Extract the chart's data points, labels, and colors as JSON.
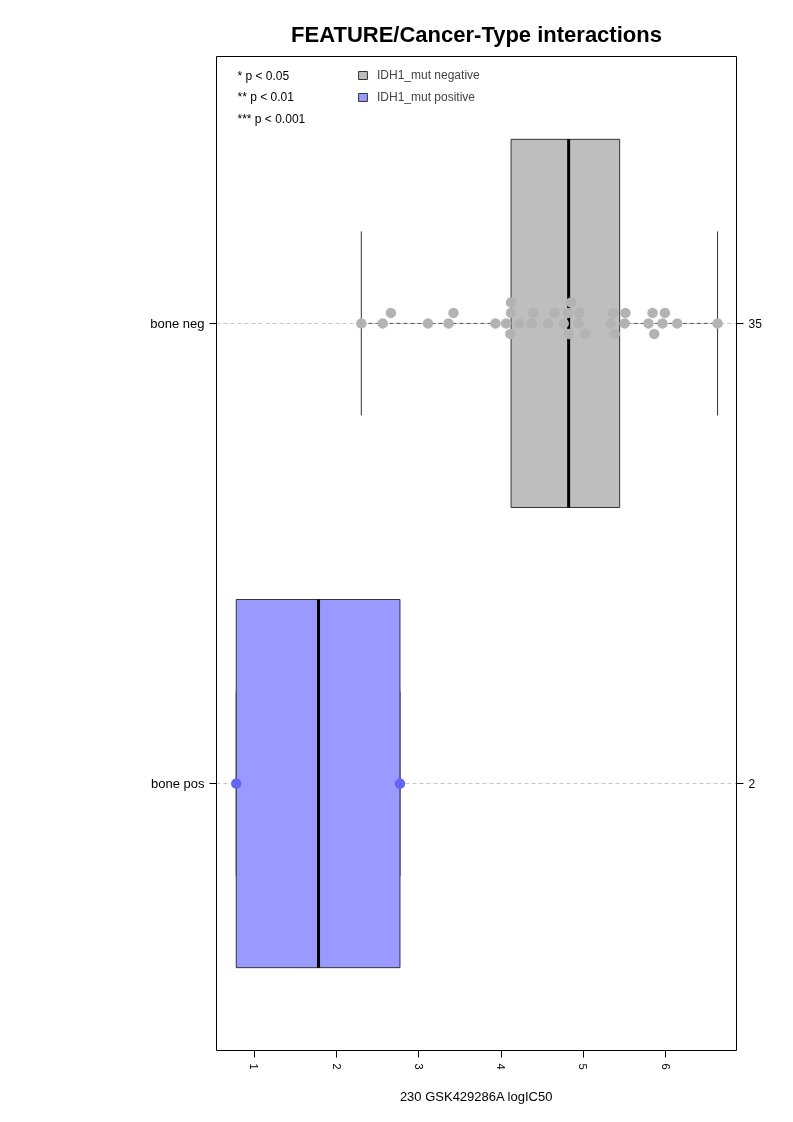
{
  "chart_data": {
    "type": "box",
    "title": "FEATURE/Cancer-Type interactions",
    "xlabel": "230 GSK429286A logIC50",
    "orientation": "horizontal",
    "categories": [
      "bone neg",
      "bone pos"
    ],
    "y2_categories": [
      "35",
      "2"
    ],
    "xlim": [
      0.54,
      6.86
    ],
    "xticks": [
      1,
      2,
      3,
      4,
      5,
      6
    ],
    "grid": "y",
    "legend": "top left",
    "annotations": [
      "* p < 0.05",
      "** p < 0.01",
      "*** p < 0.001"
    ],
    "series": [
      {
        "name": "IDH1_mut negative",
        "color": "#bebebe",
        "boxes": [
          {
            "low": 2.3,
            "q1": 4.12,
            "median": 4.82,
            "q3": 5.44,
            "high": 6.63
          },
          null
        ]
      },
      {
        "name": "IDH1_mut positive",
        "color": "#9999ff",
        "boxes": [
          null,
          {
            "low": 0.78,
            "q1": 0.78,
            "median": 1.78,
            "q3": 2.77,
            "high": 2.77
          }
        ]
      },
      {
        "type": "scatter",
        "marker": "circle",
        "color": "#b3b3b3",
        "x": [
          "bone neg",
          "bone neg",
          "bone neg",
          "bone neg",
          "bone neg",
          "bone neg",
          "bone neg",
          "bone neg",
          "bone neg",
          "bone neg",
          "bone neg",
          "bone neg",
          "bone neg",
          "bone neg",
          "bone neg",
          "bone neg",
          "bone neg",
          "bone neg",
          "bone neg",
          "bone neg",
          "bone neg",
          "bone neg",
          "bone neg",
          "bone neg",
          "bone neg",
          "bone neg",
          "bone neg",
          "bone neg",
          "bone neg",
          "bone neg",
          "bone neg",
          "bone neg",
          "bone neg",
          "bone neg",
          "bone neg"
        ],
        "values": [
          2.3,
          2.56,
          2.66,
          3.11,
          3.36,
          3.42,
          3.93,
          4.06,
          4.12,
          4.11,
          4.12,
          4.22,
          4.37,
          4.39,
          4.57,
          4.65,
          4.76,
          4.81,
          4.82,
          4.85,
          4.94,
          4.95,
          5.02,
          5.33,
          5.36,
          5.38,
          5.5,
          5.51,
          5.79,
          5.84,
          5.86,
          5.96,
          5.99,
          6.14,
          6.63
        ]
      },
      {
        "type": "scatter",
        "marker": "circle",
        "color": "#6464f8",
        "x": [
          "bone pos",
          "bone pos"
        ],
        "values": [
          0.78,
          2.77
        ]
      }
    ]
  }
}
